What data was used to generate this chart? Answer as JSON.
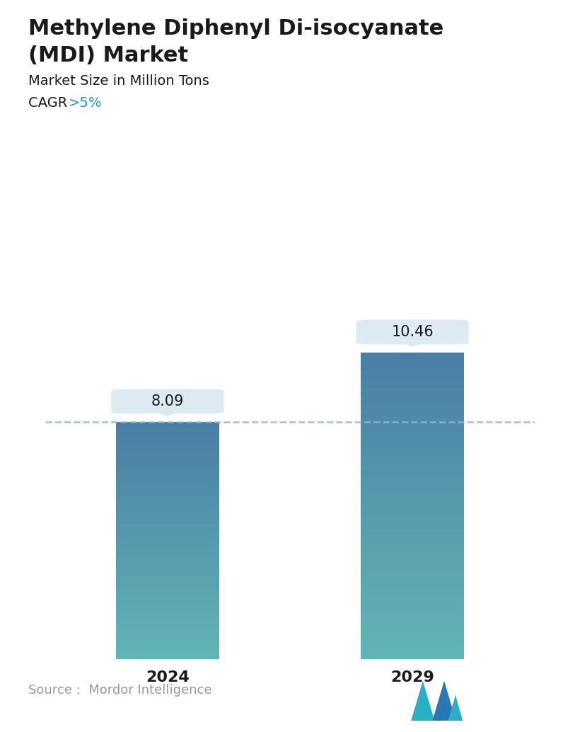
{
  "title_line1": "Methylene Diphenyl Di-isocyanate",
  "title_line2": "(MDI) Market",
  "subtitle": "Market Size in Million Tons",
  "cagr_label": "CAGR ",
  "cagr_value": ">5%",
  "cagr_color": "#1a9aba",
  "categories": [
    "2024",
    "2029"
  ],
  "values": [
    8.09,
    10.46
  ],
  "bar_color_top": "#4a7fa5",
  "bar_color_bottom": "#62b5b5",
  "dashed_line_color": "#8ab8d8",
  "dashed_line_value": 8.09,
  "label_box_color": "#dce9f0",
  "source_text": "Source :  Mordor Intelligence",
  "source_color": "#999999",
  "background_color": "#ffffff",
  "title_fontsize": 22,
  "subtitle_fontsize": 14,
  "cagr_fontsize": 14,
  "tick_fontsize": 16,
  "value_fontsize": 15,
  "source_fontsize": 13,
  "ylim": [
    0,
    13.0
  ],
  "bar_width": 0.42
}
